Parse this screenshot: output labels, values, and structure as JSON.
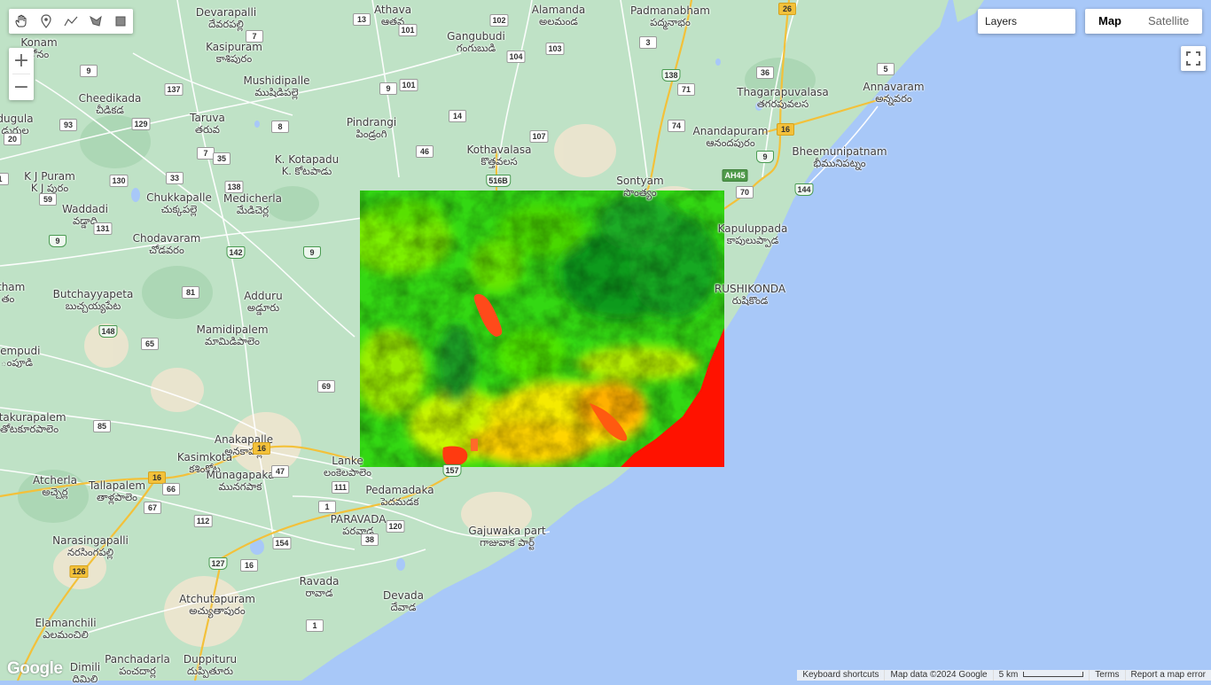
{
  "map_type": {
    "map_label": "Map",
    "satellite_label": "Satellite",
    "selected": "Map"
  },
  "layers_label": "Layers",
  "zoom": {
    "in_label": "+",
    "out_label": "−"
  },
  "toolbar_icons": [
    "hand-icon",
    "point-icon",
    "line-icon",
    "polygon-icon",
    "rectangle-icon"
  ],
  "raster_overlay": {
    "description": "false-color raster layer",
    "palette": [
      "#00b000",
      "#3ee000",
      "#e8ff00",
      "#ff9a00",
      "#ff1200"
    ]
  },
  "colors": {
    "land": "#bfe2c6",
    "water": "#a8c8f8",
    "highway": "#f3c13a",
    "road": "#ffffff"
  },
  "places": [
    {
      "name": "Devarapalli",
      "local": "దేవరపల్లి"
    },
    {
      "name": "Athava",
      "local": "ఆతవ"
    },
    {
      "name": "Alamanda",
      "local": "అలమండ"
    },
    {
      "name": "Padmanabham",
      "local": "పద్మనాభం"
    },
    {
      "name": "Konam",
      "local": "కోనం"
    },
    {
      "name": "Gangubudi",
      "local": "గంగుబుడి"
    },
    {
      "name": "Kasipuram",
      "local": "కాశిపురం"
    },
    {
      "name": "Mushidipalle",
      "local": "ముషిడిపల్లె"
    },
    {
      "name": "Cheedikada",
      "local": "చీడికడ"
    },
    {
      "name": "Thagarapuvalasa",
      "local": "తగరపువలస"
    },
    {
      "name": "Annavaram",
      "local": "అన్నవరం"
    },
    {
      "name": "dugula",
      "local": "డుగుల"
    },
    {
      "name": "Taruva",
      "local": "తరువ"
    },
    {
      "name": "Pindrangi",
      "local": "పిండ్రంగి"
    },
    {
      "name": "Anandapuram",
      "local": "ఆనందపురం"
    },
    {
      "name": "Kothavalasa",
      "local": "కొత్తవలస"
    },
    {
      "name": "Bheemunipatnam",
      "local": "భీమునిపట్నం"
    },
    {
      "name": "K J Puram",
      "local": "K J పురం"
    },
    {
      "name": "K. Kotapadu",
      "local": "K. కోటపాడు"
    },
    {
      "name": "Sontyam",
      "local": "సొంత్యం"
    },
    {
      "name": "Chukkapalle",
      "local": "చుక్కపల్లె"
    },
    {
      "name": "Medicherla",
      "local": "మేడిచెర్ల"
    },
    {
      "name": "Waddadi",
      "local": "వడ్డాది"
    },
    {
      "name": "Kapuluppada",
      "local": "కాపులుప్పాడ"
    },
    {
      "name": "Chodavaram",
      "local": "చోడవరం"
    },
    {
      "name": "RUSHIKONDA",
      "local": "రుషికొండ"
    },
    {
      "name": "atham",
      "local": "తం"
    },
    {
      "name": "Butchayyapeta",
      "local": "బుచ్చయ్యపేట"
    },
    {
      "name": "Adduru",
      "local": "అడ్డూరు"
    },
    {
      "name": "Mamidipalem",
      "local": "మామిడిపాలెం"
    },
    {
      "name": "nempudi",
      "local": "ంపూడి"
    },
    {
      "name": "otakurapalem",
      "local": "తోటకూరపాలెం"
    },
    {
      "name": "Anakapalle",
      "local": "అనకాపల్లి"
    },
    {
      "name": "Kasimkota",
      "local": "కశింకోట"
    },
    {
      "name": "Lanke",
      "local": "లంకెలపాలెం"
    },
    {
      "name": "Atcherla",
      "local": "అచ్చెర్ల"
    },
    {
      "name": "Tallapalem",
      "local": "తాళ్లపాలెం"
    },
    {
      "name": "Munagapaka",
      "local": "మునగపాక"
    },
    {
      "name": "Pedamadaka",
      "local": "పెదమడక"
    },
    {
      "name": "PARAVADA",
      "local": "పరవాడ"
    },
    {
      "name": "Gajuwaka part",
      "local": "గాజువాక పార్ట్"
    },
    {
      "name": "Narasingapalli",
      "local": "నరసింగపల్లి"
    },
    {
      "name": "Ravada",
      "local": "రావాడ"
    },
    {
      "name": "Atchutapuram",
      "local": "అచ్యుతాపురం"
    },
    {
      "name": "Devada",
      "local": "దేవాడ"
    },
    {
      "name": "Elamanchili",
      "local": "ఎలమంచిలి"
    },
    {
      "name": "Panchadarla",
      "local": "పంచదార్ల"
    },
    {
      "name": "Duppituru",
      "local": "దుప్పితూరు"
    },
    {
      "name": "Dimili",
      "local": "దిమిలి"
    }
  ],
  "road_shields": [
    "7",
    "102",
    "101",
    "104",
    "103",
    "3",
    "26",
    "137",
    "9",
    "138",
    "71",
    "36",
    "5",
    "16",
    "13",
    "101",
    "9",
    "129",
    "8",
    "14",
    "74",
    "93",
    "20",
    "7",
    "107",
    "35",
    "46",
    "516B",
    "9",
    "1",
    "AH45",
    "130",
    "33",
    "138",
    "70",
    "144",
    "59",
    "131",
    "9",
    "142",
    "9",
    "81",
    "148",
    "65",
    "69",
    "85",
    "16",
    "16",
    "47",
    "111",
    "1",
    "157",
    "66",
    "67",
    "112",
    "120",
    "38",
    "154",
    "127",
    "16",
    "126",
    "1"
  ],
  "attribution": {
    "keyboard": "Keyboard shortcuts",
    "map_data": "Map data ©2024 Google",
    "scale": "5 km",
    "terms": "Terms",
    "report": "Report a map error"
  },
  "logo": "Google"
}
